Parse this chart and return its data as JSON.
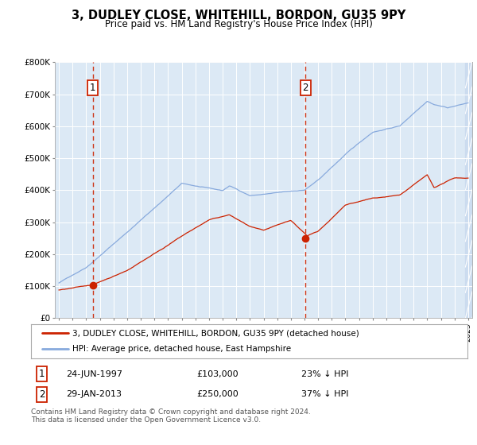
{
  "title": "3, DUDLEY CLOSE, WHITEHILL, BORDON, GU35 9PY",
  "subtitle": "Price paid vs. HM Land Registry's House Price Index (HPI)",
  "transactions": [
    {
      "label": "1",
      "date_num": 1997.48,
      "price": 103000,
      "text": "24-JUN-1997",
      "price_str": "£103,000",
      "pct": "23% ↓ HPI"
    },
    {
      "label": "2",
      "date_num": 2013.08,
      "price": 250000,
      "text": "29-JAN-2013",
      "price_str": "£250,000",
      "pct": "37% ↓ HPI"
    }
  ],
  "legend_entries": [
    {
      "label": "3, DUDLEY CLOSE, WHITEHILL, BORDON, GU35 9PY (detached house)",
      "color": "#cc0000"
    },
    {
      "label": "HPI: Average price, detached house, East Hampshire",
      "color": "#88aadd"
    }
  ],
  "footer": "Contains HM Land Registry data © Crown copyright and database right 2024.\nThis data is licensed under the Open Government Licence v3.0.",
  "ylim": [
    0,
    800000
  ],
  "yticks": [
    0,
    100000,
    200000,
    300000,
    400000,
    500000,
    600000,
    700000,
    800000
  ],
  "ytick_labels": [
    "£0",
    "£100K",
    "£200K",
    "£300K",
    "£400K",
    "£500K",
    "£600K",
    "£700K",
    "£800K"
  ],
  "xlim": [
    1994.7,
    2025.3
  ],
  "bg_color": "#dce9f5",
  "hpi_color": "#88aadd",
  "price_color": "#cc2200",
  "dashed_color": "#cc2200",
  "grid_color": "#ffffff",
  "fig_bg": "#ffffff",
  "hatch_color": "#c8d8ee",
  "spine_color": "#aaaaaa"
}
